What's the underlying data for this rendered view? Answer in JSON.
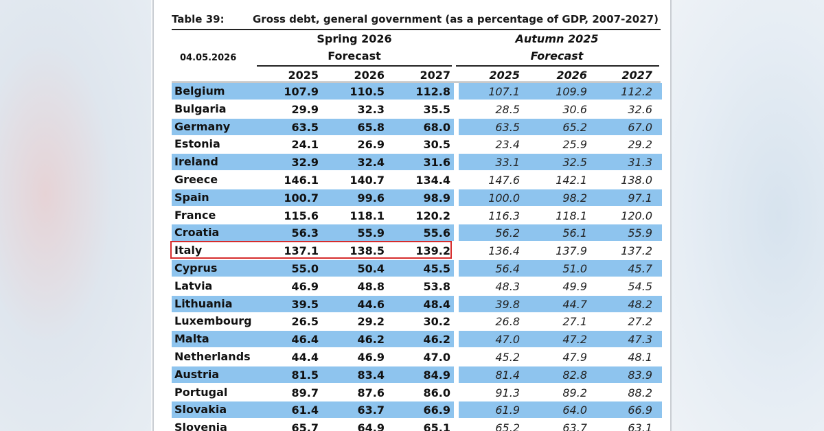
{
  "table": {
    "number": "Table 39:",
    "title": "Gross debt, general government (as a percentage of GDP, 2007-2027)",
    "date": "04.05.2026",
    "spring_label": "Spring 2026",
    "spring_sub": "Forecast",
    "autumn_label": "Autumn 2025",
    "autumn_sub": "Forecast",
    "years": [
      "2025",
      "2026",
      "2027"
    ],
    "highlighted_row": "Italy",
    "highlight_color": "#d62c2c",
    "band_color": "#8ec4ee",
    "rows": [
      {
        "country": "Belgium",
        "spring": [
          "107.9",
          "110.5",
          "112.8"
        ],
        "autumn": [
          "107.1",
          "109.9",
          "112.2"
        ]
      },
      {
        "country": "Bulgaria",
        "spring": [
          "29.9",
          "32.3",
          "35.5"
        ],
        "autumn": [
          "28.5",
          "30.6",
          "32.6"
        ]
      },
      {
        "country": "Germany",
        "spring": [
          "63.5",
          "65.8",
          "68.0"
        ],
        "autumn": [
          "63.5",
          "65.2",
          "67.0"
        ]
      },
      {
        "country": "Estonia",
        "spring": [
          "24.1",
          "26.9",
          "30.5"
        ],
        "autumn": [
          "23.4",
          "25.9",
          "29.2"
        ]
      },
      {
        "country": "Ireland",
        "spring": [
          "32.9",
          "32.4",
          "31.6"
        ],
        "autumn": [
          "33.1",
          "32.5",
          "31.3"
        ]
      },
      {
        "country": "Greece",
        "spring": [
          "146.1",
          "140.7",
          "134.4"
        ],
        "autumn": [
          "147.6",
          "142.1",
          "138.0"
        ]
      },
      {
        "country": "Spain",
        "spring": [
          "100.7",
          "99.6",
          "98.9"
        ],
        "autumn": [
          "100.0",
          "98.2",
          "97.1"
        ]
      },
      {
        "country": "France",
        "spring": [
          "115.6",
          "118.1",
          "120.2"
        ],
        "autumn": [
          "116.3",
          "118.1",
          "120.0"
        ]
      },
      {
        "country": "Croatia",
        "spring": [
          "56.3",
          "55.9",
          "55.6"
        ],
        "autumn": [
          "56.2",
          "56.1",
          "55.9"
        ]
      },
      {
        "country": "Italy",
        "spring": [
          "137.1",
          "138.5",
          "139.2"
        ],
        "autumn": [
          "136.4",
          "137.9",
          "137.2"
        ]
      },
      {
        "country": "Cyprus",
        "spring": [
          "55.0",
          "50.4",
          "45.5"
        ],
        "autumn": [
          "56.4",
          "51.0",
          "45.7"
        ]
      },
      {
        "country": "Latvia",
        "spring": [
          "46.9",
          "48.8",
          "53.8"
        ],
        "autumn": [
          "48.3",
          "49.9",
          "54.5"
        ]
      },
      {
        "country": "Lithuania",
        "spring": [
          "39.5",
          "44.6",
          "48.4"
        ],
        "autumn": [
          "39.8",
          "44.7",
          "48.2"
        ]
      },
      {
        "country": "Luxembourg",
        "spring": [
          "26.5",
          "29.2",
          "30.2"
        ],
        "autumn": [
          "26.8",
          "27.1",
          "27.2"
        ]
      },
      {
        "country": "Malta",
        "spring": [
          "46.4",
          "46.2",
          "46.2"
        ],
        "autumn": [
          "47.0",
          "47.2",
          "47.3"
        ]
      },
      {
        "country": "Netherlands",
        "spring": [
          "44.4",
          "46.9",
          "47.0"
        ],
        "autumn": [
          "45.2",
          "47.9",
          "48.1"
        ]
      },
      {
        "country": "Austria",
        "spring": [
          "81.5",
          "83.4",
          "84.9"
        ],
        "autumn": [
          "81.4",
          "82.8",
          "83.9"
        ]
      },
      {
        "country": "Portugal",
        "spring": [
          "89.7",
          "87.6",
          "86.0"
        ],
        "autumn": [
          "91.3",
          "89.2",
          "88.2"
        ]
      },
      {
        "country": "Slovakia",
        "spring": [
          "61.4",
          "63.7",
          "66.9"
        ],
        "autumn": [
          "61.9",
          "64.0",
          "66.9"
        ]
      },
      {
        "country": "Slovenia",
        "spring": [
          "65.7",
          "64.9",
          "65.1"
        ],
        "autumn": [
          "65.2",
          "63.7",
          "63.1"
        ]
      }
    ]
  }
}
